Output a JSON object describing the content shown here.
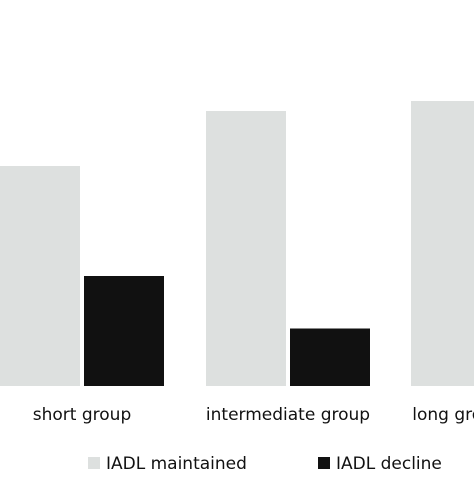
{
  "chart_data": {
    "type": "bar",
    "categories": [
      "short group",
      "intermediate group",
      "long group"
    ],
    "series": [
      {
        "name": "IADL maintained",
        "values": [
          88,
          110,
          114
        ]
      },
      {
        "name": "IADL decline",
        "values": [
          44,
          23,
          0
        ]
      }
    ],
    "ylim": [
      0,
      150
    ],
    "grid": false,
    "legend_position": "bottom",
    "colors": [
      "#dde0df",
      "#111111"
    ]
  }
}
